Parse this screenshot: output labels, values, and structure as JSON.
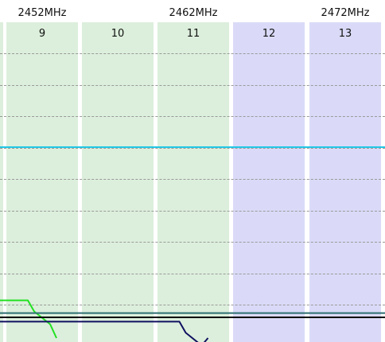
{
  "frequency_labels": [
    {
      "text": "2452MHz",
      "channel": 9
    },
    {
      "text": "2462MHz",
      "channel": 11
    },
    {
      "text": "2472MHz",
      "channel": 13
    }
  ],
  "channels": [
    {
      "number": "9",
      "band_color": "#dcefdc"
    },
    {
      "number": "10",
      "band_color": "#dcefdc"
    },
    {
      "number": "11",
      "band_color": "#dcefdc"
    },
    {
      "number": "12",
      "band_color": "#dadaf8"
    },
    {
      "number": "13",
      "band_color": "#dadaf8"
    }
  ],
  "left_partial_band_color": "#dcefdc",
  "gridlines": 9,
  "networks": [
    {
      "color": "#22c8e6",
      "channel": 11,
      "width_channels": 8,
      "signal": -40
    },
    {
      "color": "#22e022",
      "channel": 7,
      "width_channels": 4,
      "signal": -76
    },
    {
      "color": "#2e6f72",
      "channel": 11,
      "width_channels": 8,
      "signal": -79
    },
    {
      "color": "#ee88aa",
      "channel": 11,
      "width_channels": 8,
      "signal": -80
    },
    {
      "color": "#000000",
      "channel": 11,
      "width_channels": 8,
      "signal": -80
    },
    {
      "color": "#101060",
      "channel": 9,
      "width_channels": 4,
      "signal": -81
    }
  ]
}
